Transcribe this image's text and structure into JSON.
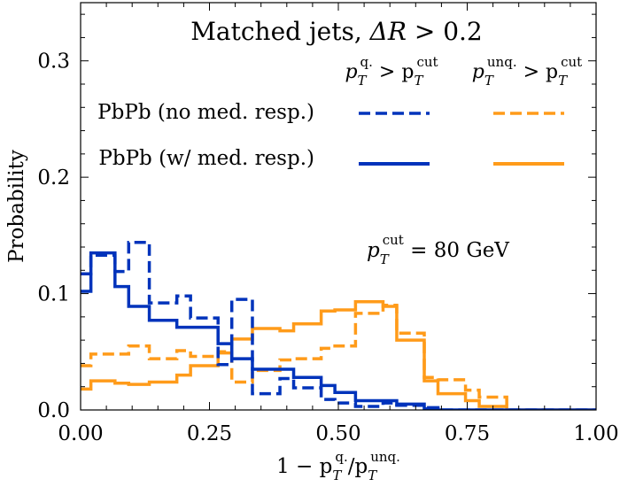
{
  "chart_data": {
    "type": "step-histogram",
    "title": "Matched jets, ΔR > 0.2",
    "title_parts": {
      "main": "Matched jets, ",
      "delta": "ΔR",
      "rest": " > 0.2"
    },
    "xlabel": "1 − pT^q./pT^unq.",
    "xlabel_parts": {
      "prefix": "1 − p",
      "sub": "T",
      "sup_q": "q.",
      "slash": "/p",
      "sup_unq": "unq."
    },
    "ylabel": "Probability",
    "xlim": [
      0,
      1
    ],
    "ylim": [
      0,
      0.35
    ],
    "x_ticks": [
      0,
      0.25,
      0.5,
      0.75,
      1.0
    ],
    "x_tick_labels": [
      "0.00",
      "0.25",
      "0.50",
      "0.75",
      "1.00"
    ],
    "y_ticks": [
      0.0,
      0.1,
      0.2,
      0.3
    ],
    "y_tick_labels": [
      "0.0",
      "0.1",
      "0.2",
      "0.3"
    ],
    "bin_edges": [
      0,
      0.02,
      0.0667,
      0.0933,
      0.1333,
      0.1867,
      0.2133,
      0.2667,
      0.2933,
      0.3333,
      0.3867,
      0.4133,
      0.4667,
      0.4933,
      0.5333,
      0.5867,
      0.6133,
      0.6667,
      0.6933,
      0.7467,
      0.7733,
      0.8267,
      1.0
    ],
    "series": [
      {
        "name": "PbPb (no med. resp.), pT^q. > pT^cut",
        "color": "#0033bb",
        "dash": true,
        "values": [
          0.117,
          0.133,
          0.119,
          0.144,
          0.092,
          0.098,
          0.079,
          0.039,
          0.095,
          0.014,
          0.027,
          0.019,
          0.009,
          0.006,
          0.003,
          0.006,
          0.004,
          0.002,
          0,
          0,
          0,
          0
        ]
      },
      {
        "name": "PbPb (w/ med. resp.), pT^q. > pT^cut",
        "color": "#0033bb",
        "dash": false,
        "values": [
          0.102,
          0.135,
          0.106,
          0.089,
          0.077,
          0.071,
          0.071,
          0.057,
          0.044,
          0.035,
          0.035,
          0.028,
          0.021,
          0.015,
          0.008,
          0.008,
          0.005,
          0.001,
          0,
          0,
          0,
          0
        ]
      },
      {
        "name": "PbPb (no med. resp.), pT^unq. > pT^cut",
        "color": "#ff9b1a",
        "dash": true,
        "values": [
          0.038,
          0.048,
          0.048,
          0.055,
          0.044,
          0.051,
          0.046,
          0.05,
          0.024,
          0.034,
          0.043,
          0.044,
          0.053,
          0.055,
          0.083,
          0.09,
          0.066,
          0.028,
          0.026,
          0.017,
          0.011,
          0
        ]
      },
      {
        "name": "PbPb (w/ med. resp.), pT^unq. > pT^cut",
        "color": "#ff9b1a",
        "dash": false,
        "values": [
          0.018,
          0.025,
          0.023,
          0.022,
          0.024,
          0.03,
          0.038,
          0.049,
          0.061,
          0.07,
          0.068,
          0.074,
          0.085,
          0.086,
          0.093,
          0.089,
          0.06,
          0.025,
          0.014,
          0.008,
          0.003,
          0
        ]
      }
    ],
    "legend": {
      "col_headers": [
        {
          "p": "p",
          "sub": "T",
          "sup_left": "q.",
          "op": " > p",
          "sub2": "T",
          "sup_right": "cut"
        },
        {
          "p": "p",
          "sub": "T",
          "sup_left": "unq.",
          "op": " > p",
          "sub2": "T",
          "sup_right": "cut"
        }
      ],
      "row_labels": [
        "PbPb (no med. resp.)",
        "PbPb (w/ med. resp.)"
      ],
      "placement": "top-right"
    },
    "annotation": {
      "p": "p",
      "sub": "T",
      "sup": "cut",
      "rest": " = 80 GeV"
    }
  }
}
